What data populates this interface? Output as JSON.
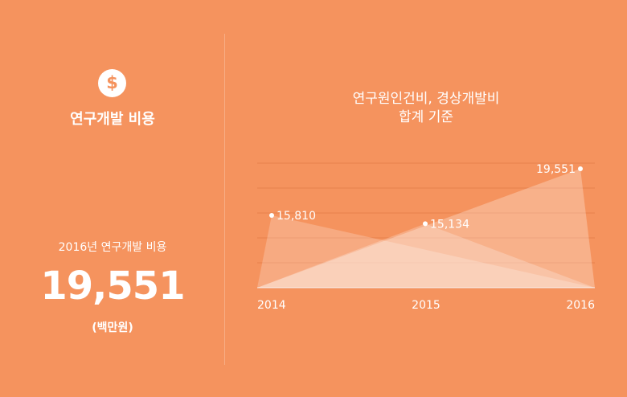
{
  "left": {
    "icon": "dollar-coin-icon",
    "icon_glyph": "$",
    "title": "연구개발 비용",
    "stat_label": "2016년 연구개발 비용",
    "stat_value": "19,551",
    "stat_unit": "(백만원)"
  },
  "chart_title": {
    "line1": "연구원인건비, 경상개발비",
    "line2": "합계 기준"
  },
  "chart_data": {
    "type": "area",
    "categories": [
      "2014",
      "2015",
      "2016"
    ],
    "values": [
      15810,
      15134,
      19551
    ],
    "data_labels": [
      "15,810",
      "15,134",
      "19,551"
    ],
    "ylim": [
      10000,
      20000
    ],
    "grid": true,
    "colors": {
      "background": "#f5935e",
      "grid": "#e8804c",
      "triangle_fill": "#ffffff"
    }
  }
}
